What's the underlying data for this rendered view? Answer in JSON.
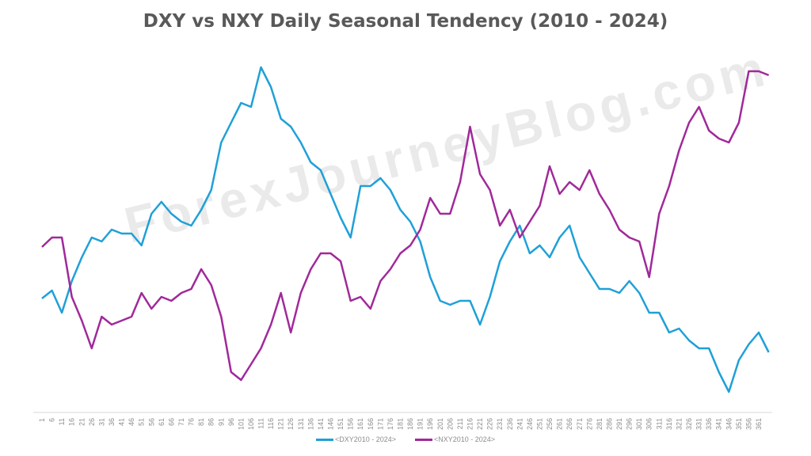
{
  "watermark": "ForexJourneyBlog.com",
  "chart_data": {
    "type": "line",
    "title": "DXY vs NXY Daily Seasonal Tendency (2010 - 2024)",
    "xlabel": "",
    "ylabel": "",
    "x": [
      1,
      6,
      11,
      16,
      21,
      26,
      31,
      36,
      41,
      46,
      51,
      56,
      61,
      66,
      71,
      76,
      81,
      86,
      91,
      96,
      101,
      106,
      111,
      116,
      121,
      126,
      131,
      136,
      141,
      146,
      151,
      156,
      161,
      166,
      171,
      176,
      181,
      186,
      191,
      196,
      201,
      206,
      211,
      216,
      221,
      226,
      231,
      236,
      241,
      246,
      251,
      256,
      261,
      266,
      271,
      276,
      281,
      286,
      291,
      296,
      301,
      306,
      311,
      316,
      321,
      326,
      331,
      336,
      341,
      346,
      351,
      356,
      361,
      366
    ],
    "x_ticks": [
      "1",
      "6",
      "11",
      "16",
      "21",
      "26",
      "31",
      "36",
      "41",
      "46",
      "51",
      "56",
      "61",
      "66",
      "71",
      "76",
      "81",
      "86",
      "91",
      "96",
      "101",
      "106",
      "111",
      "116",
      "121",
      "126",
      "131",
      "136",
      "141",
      "146",
      "151",
      "156",
      "161",
      "166",
      "171",
      "176",
      "181",
      "186",
      "191",
      "196",
      "201",
      "206",
      "211",
      "216",
      "221",
      "226",
      "231",
      "236",
      "241",
      "246",
      "251",
      "256",
      "261",
      "266",
      "271",
      "276",
      "281",
      "286",
      "291",
      "296",
      "301",
      "306",
      "311",
      "316",
      "321",
      "326",
      "331",
      "336",
      "341",
      "346",
      "351",
      "356",
      "361"
    ],
    "xlim": [
      1,
      366
    ],
    "ylim": [
      0,
      43
    ],
    "grid": false,
    "legend_position": "bottom",
    "series": [
      {
        "name": "<DXY2010 - 2024>",
        "color": "#1fa0d8",
        "values": [
          13.3,
          14.3,
          11.5,
          15.5,
          18.5,
          21,
          20.5,
          22,
          21.5,
          21.5,
          20,
          24,
          25.5,
          24,
          23,
          22.5,
          24.5,
          27,
          33,
          35.5,
          38,
          37.5,
          42.5,
          40,
          36,
          35,
          33,
          30.5,
          29.5,
          26.5,
          23.5,
          21,
          27.5,
          27.5,
          28.5,
          27,
          24.5,
          23,
          20.5,
          16,
          13,
          12.5,
          13,
          13,
          10,
          13.5,
          18,
          20.5,
          22.5,
          19,
          20,
          18.5,
          21,
          22.5,
          18.5,
          16.5,
          14.5,
          14.5,
          14,
          15.5,
          14,
          11.5,
          11.5,
          9,
          9.5,
          8,
          7,
          7,
          4,
          1.5,
          5.5,
          7.5,
          9,
          6.5
        ]
      },
      {
        "name": "<NXY2010 - 2024>",
        "color": "#a0299a",
        "values": [
          19.8,
          21,
          21,
          13.5,
          10.5,
          7,
          11,
          10,
          10.5,
          11,
          14,
          12,
          13.5,
          13,
          14,
          14.5,
          17,
          15,
          11,
          4,
          3,
          5,
          7,
          10,
          14,
          9,
          14,
          17,
          19,
          19,
          18,
          13,
          13.5,
          12,
          15.5,
          17,
          19,
          20,
          22,
          26,
          24,
          24,
          28,
          35,
          29,
          27,
          22.5,
          24.5,
          21,
          23,
          25,
          30,
          26.5,
          28,
          27,
          29.5,
          26.5,
          24.5,
          22,
          21,
          20.5,
          16,
          24,
          27.5,
          32,
          35.5,
          37.5,
          34.5,
          33.5,
          33,
          35.5,
          42,
          42,
          41.5
        ]
      }
    ]
  }
}
